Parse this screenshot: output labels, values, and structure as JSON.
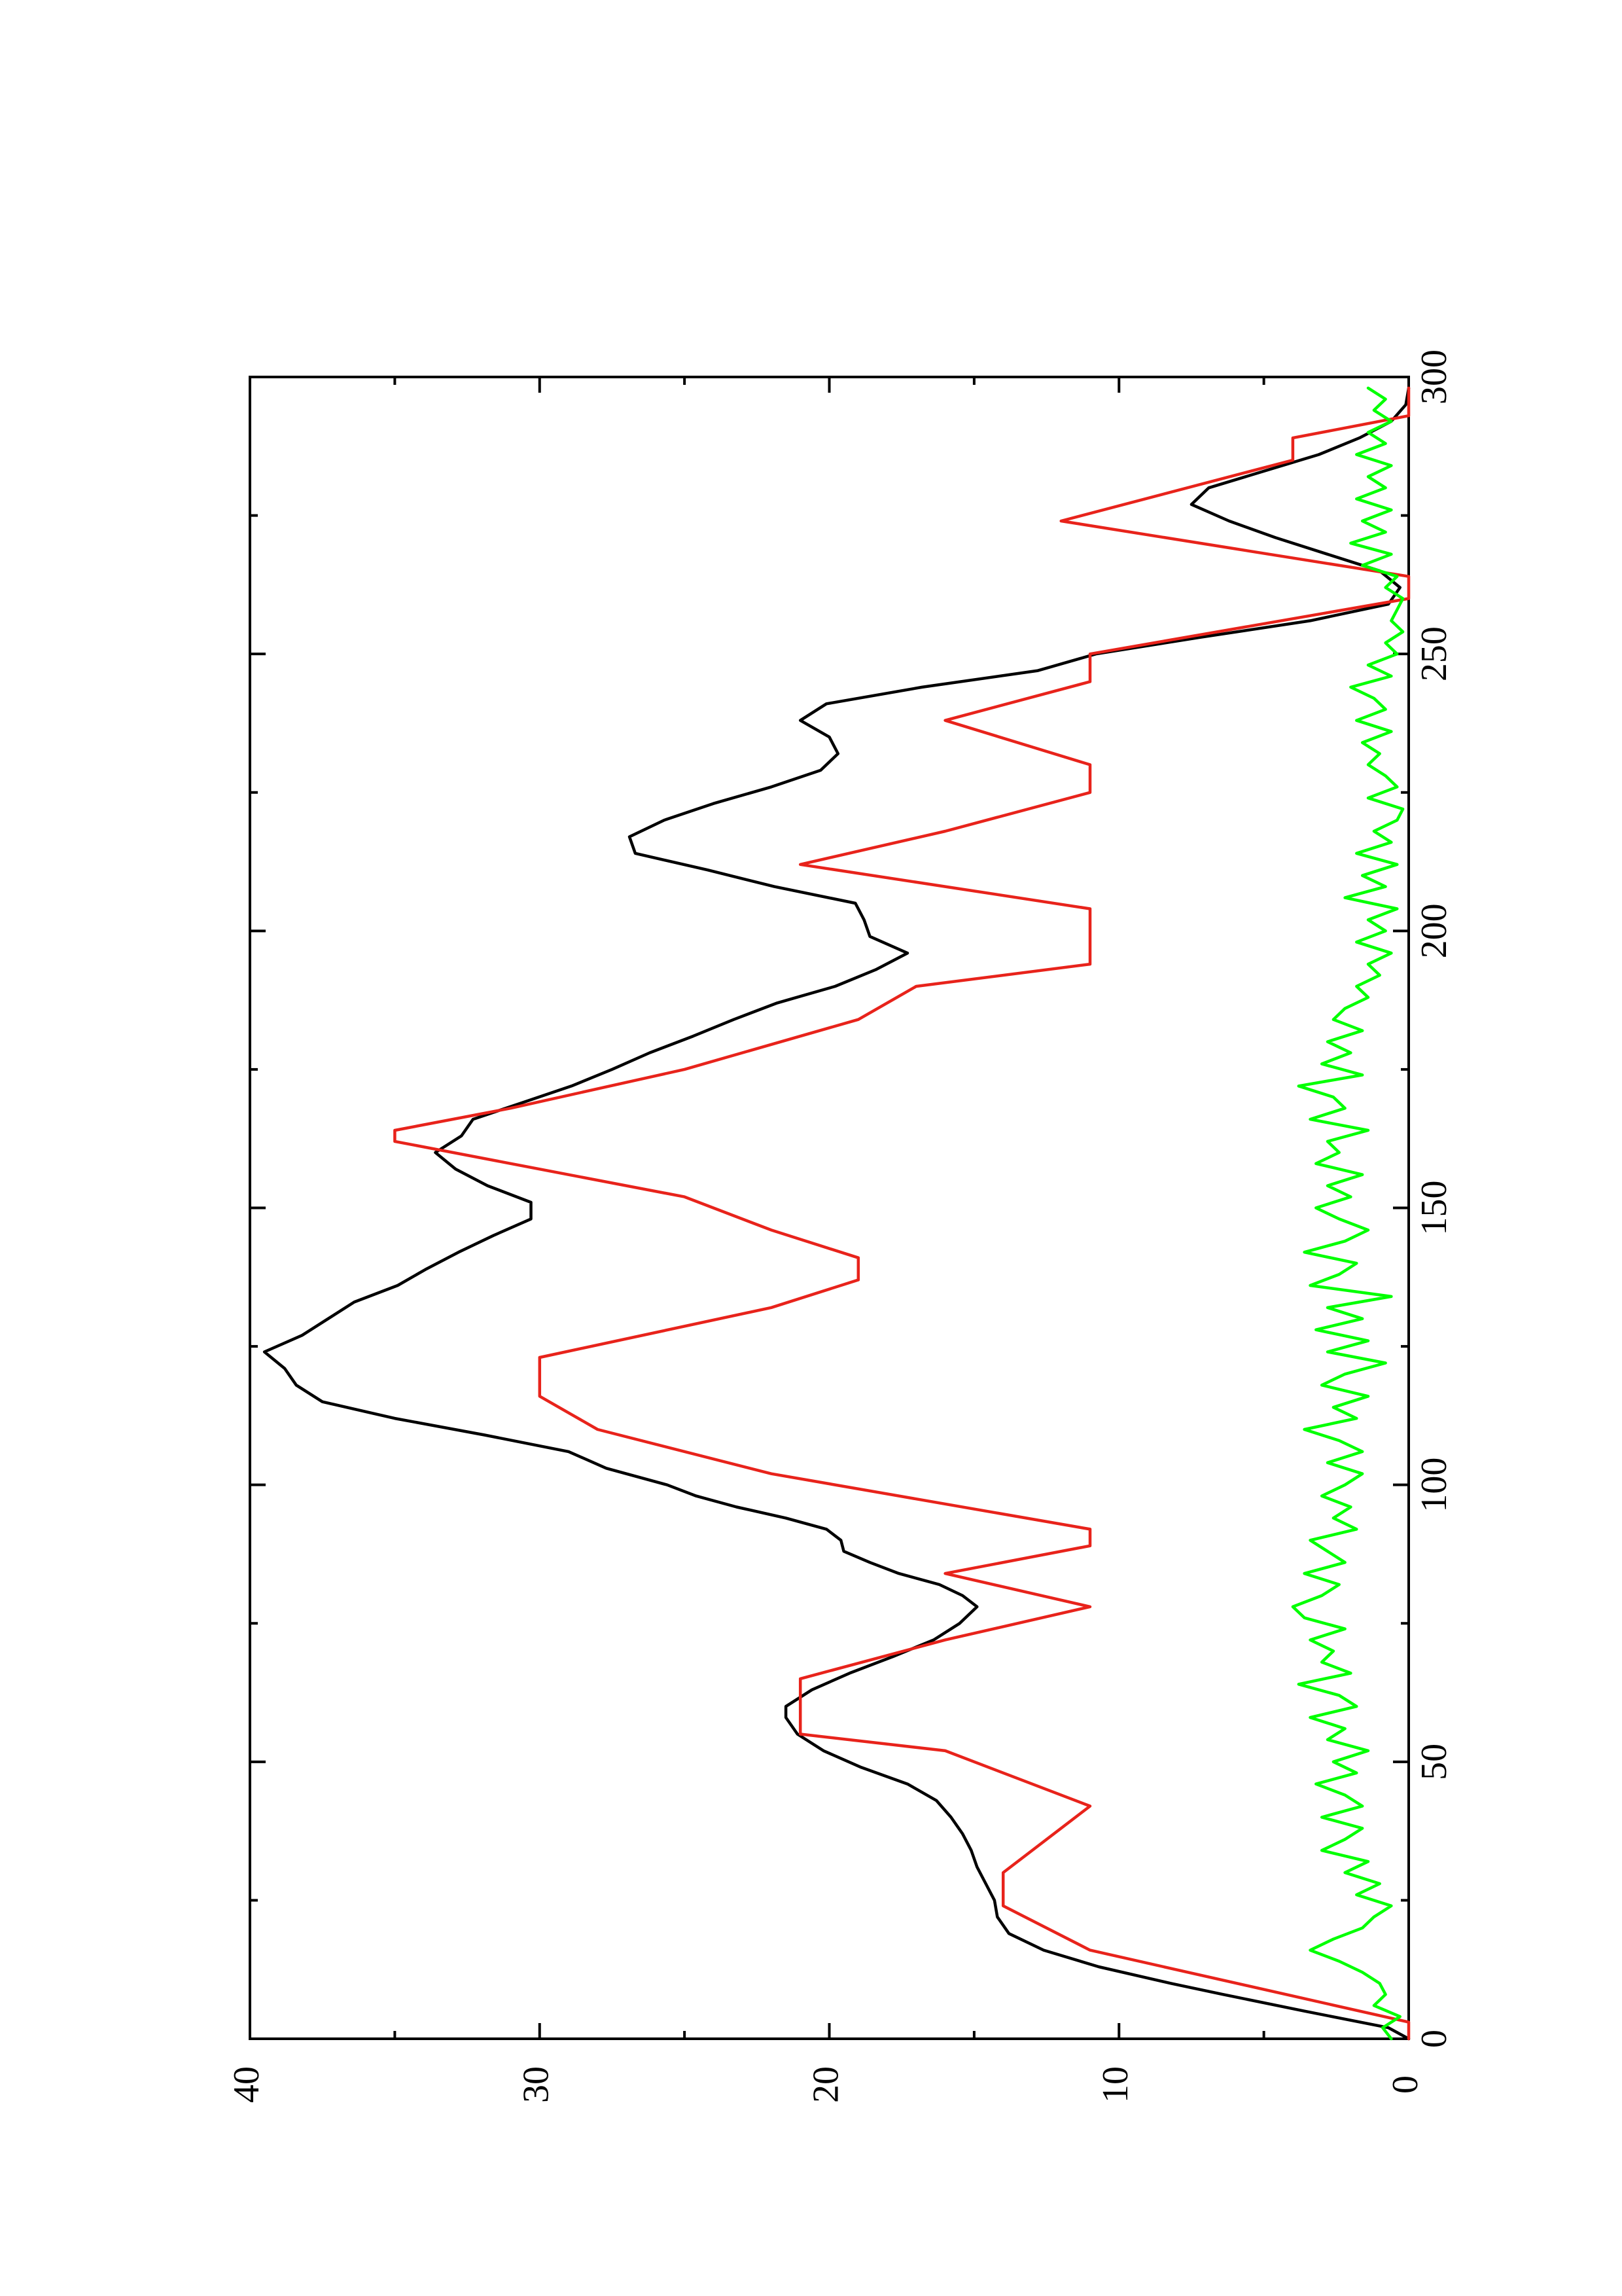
{
  "chart_data": {
    "type": "line",
    "title": "",
    "xlabel": "",
    "ylabel": "",
    "orientation": "rotated-90-ccw",
    "xlim": [
      0,
      300
    ],
    "ylim": [
      0,
      40
    ],
    "x_ticks": [
      "0",
      "50",
      "100",
      "150",
      "200",
      "250",
      "300"
    ],
    "y_ticks": [
      "0",
      "10",
      "20",
      "30",
      "40"
    ],
    "grid": false,
    "legend": "none",
    "series": [
      {
        "color": "#000000",
        "x": [
          0,
          2,
          5,
          8,
          10,
          13,
          16,
          19,
          22,
          25,
          28,
          31,
          34,
          37,
          40,
          43,
          46,
          49,
          52,
          55,
          58,
          60,
          63,
          66,
          69,
          72,
          75,
          78,
          80,
          82,
          84,
          86,
          88,
          90,
          92,
          94,
          96,
          98,
          100,
          103,
          106,
          109,
          112,
          115,
          118,
          121,
          124,
          127,
          130,
          133,
          136,
          139,
          142,
          145,
          148,
          151,
          154,
          157,
          160,
          163,
          166,
          169,
          172,
          175,
          178,
          181,
          184,
          187,
          190,
          193,
          196,
          199,
          202,
          205,
          208,
          211,
          214,
          217,
          220,
          223,
          226,
          229,
          232,
          235,
          238,
          241,
          244,
          247,
          250,
          253,
          256,
          259,
          262,
          265,
          268,
          271,
          274,
          277,
          280,
          283,
          286,
          289,
          292,
          295,
          298
        ],
        "y": [
          0,
          0.7,
          3.6,
          6.4,
          8.2,
          10.7,
          12.6,
          13.8,
          14.2,
          14.3,
          14.6,
          14.9,
          15.1,
          15.4,
          15.8,
          16.3,
          17.3,
          18.9,
          20.2,
          21.1,
          21.5,
          21.5,
          20.6,
          19.3,
          17.8,
          16.4,
          15.5,
          14.9,
          15.4,
          16.2,
          17.6,
          18.6,
          19.5,
          19.6,
          20.1,
          21.5,
          23.2,
          24.6,
          25.6,
          27.7,
          29.0,
          31.9,
          35.0,
          37.5,
          38.4,
          38.8,
          39.5,
          38.2,
          37.3,
          36.4,
          34.9,
          33.9,
          32.8,
          31.6,
          30.3,
          30.3,
          31.8,
          32.9,
          33.6,
          32.7,
          32.3,
          30.6,
          28.9,
          27.5,
          26.2,
          24.7,
          23.3,
          21.8,
          19.8,
          18.4,
          17.3,
          18.6,
          18.8,
          19.1,
          21.9,
          24.2,
          26.7,
          26.9,
          25.7,
          24.0,
          22.0,
          20.3,
          19.7,
          20.0,
          21.0,
          20.1,
          16.8,
          12.8,
          10.8,
          7.2,
          3.4,
          0.7,
          0.3,
          1.0,
          2.8,
          4.6,
          6.2,
          7.5,
          6.9,
          5.0,
          3.1,
          1.7,
          0.6,
          0.1,
          0.0
        ]
      },
      {
        "color": "#e8231b",
        "x": [
          0,
          3,
          16,
          16,
          24,
          24,
          29,
          29,
          30,
          30,
          42,
          42,
          52,
          52,
          55,
          55,
          65,
          65,
          72,
          72,
          78,
          78,
          84,
          84,
          89,
          89,
          92,
          92,
          102,
          102,
          110,
          110,
          116,
          116,
          123,
          123,
          132,
          132,
          137,
          137,
          141,
          141,
          146,
          146,
          152,
          152,
          158,
          158,
          162,
          162,
          164,
          164,
          168,
          168,
          175,
          175,
          184,
          184,
          190,
          190,
          194,
          194,
          204,
          204,
          208,
          208,
          212,
          212,
          218,
          218,
          225,
          225,
          230,
          230,
          238,
          238,
          245,
          245,
          250,
          250,
          260,
          260,
          264,
          264,
          269,
          269,
          274,
          274,
          285,
          285,
          289,
          289,
          293,
          293,
          298
        ],
        "y": [
          0,
          0,
          11,
          11,
          14,
          14,
          14,
          14,
          14,
          14,
          11,
          11,
          16,
          16,
          21,
          21,
          21,
          21,
          16,
          16,
          11,
          11,
          16,
          16,
          11,
          11,
          11,
          11,
          22,
          22,
          28,
          28,
          30,
          30,
          30,
          30,
          22,
          22,
          19,
          19,
          19,
          19,
          22,
          22,
          25,
          25,
          31,
          31,
          35,
          35,
          35,
          35,
          31,
          31,
          25,
          25,
          19,
          19,
          17,
          17,
          11,
          11,
          11,
          11,
          16,
          16,
          21,
          21,
          16,
          16,
          11,
          11,
          11,
          11,
          16,
          16,
          11,
          11,
          11,
          11,
          0,
          0,
          0,
          0,
          6,
          6,
          12,
          12,
          4,
          4,
          4,
          4,
          0,
          0,
          0
        ]
      },
      {
        "color": "#00ff00",
        "x": [
          0,
          2,
          4,
          6,
          8,
          10,
          12,
          14,
          16,
          18,
          20,
          22,
          24,
          26,
          28,
          30,
          32,
          34,
          36,
          38,
          40,
          42,
          44,
          46,
          48,
          50,
          52,
          54,
          56,
          58,
          60,
          62,
          64,
          66,
          68,
          70,
          72,
          74,
          76,
          78,
          80,
          82,
          84,
          86,
          88,
          90,
          92,
          94,
          96,
          98,
          100,
          102,
          104,
          106,
          108,
          110,
          112,
          114,
          116,
          118,
          120,
          122,
          124,
          126,
          128,
          130,
          132,
          134,
          136,
          138,
          140,
          142,
          144,
          146,
          148,
          150,
          152,
          154,
          156,
          158,
          160,
          162,
          164,
          166,
          168,
          170,
          172,
          174,
          176,
          178,
          180,
          182,
          184,
          186,
          188,
          190,
          192,
          194,
          196,
          198,
          200,
          202,
          204,
          206,
          208,
          210,
          212,
          214,
          216,
          218,
          220,
          222,
          224,
          226,
          228,
          230,
          232,
          234,
          236,
          238,
          240,
          242,
          244,
          246,
          248,
          250,
          252,
          254,
          256,
          258,
          260,
          262,
          264,
          266,
          268,
          270,
          272,
          274,
          276,
          278,
          280,
          282,
          284,
          286,
          288,
          290,
          292,
          294,
          296,
          298
        ],
        "y": [
          0.6,
          0.9,
          0.3,
          1.2,
          0.8,
          1.0,
          1.6,
          2.4,
          3.4,
          2.6,
          1.6,
          1.2,
          0.6,
          1.8,
          1.0,
          2.2,
          1.4,
          3.0,
          2.2,
          1.6,
          3.0,
          1.6,
          2.2,
          3.2,
          1.8,
          2.6,
          1.4,
          2.8,
          2.2,
          3.4,
          1.8,
          2.4,
          3.8,
          2.0,
          3.0,
          2.6,
          3.4,
          2.2,
          3.6,
          4.0,
          3.0,
          2.4,
          3.6,
          2.2,
          2.8,
          3.4,
          1.8,
          2.6,
          2.0,
          3.0,
          2.2,
          1.6,
          2.8,
          1.6,
          2.4,
          3.6,
          1.8,
          2.6,
          1.4,
          3.0,
          2.2,
          0.8,
          2.8,
          1.4,
          3.2,
          1.6,
          2.8,
          0.6,
          3.4,
          2.4,
          1.8,
          3.6,
          2.2,
          1.4,
          2.4,
          3.2,
          2.0,
          2.8,
          1.6,
          3.2,
          2.4,
          2.8,
          1.4,
          3.4,
          2.2,
          2.6,
          3.8,
          1.6,
          3.0,
          2.0,
          2.8,
          1.6,
          2.6,
          2.2,
          1.4,
          1.8,
          1.0,
          1.4,
          0.6,
          1.8,
          0.8,
          1.4,
          0.4,
          2.2,
          0.8,
          1.6,
          0.4,
          1.8,
          0.6,
          1.2,
          0.4,
          0.2,
          1.4,
          0.4,
          0.8,
          1.4,
          1.0,
          1.6,
          0.6,
          1.8,
          0.8,
          1.2,
          2.0,
          0.6,
          1.4,
          0.4,
          0.8,
          0.2,
          0.6,
          0.4,
          0.2,
          0.8,
          0.4,
          1.6,
          0.6,
          2.0,
          0.8,
          1.6,
          0.6,
          1.8,
          0.8,
          1.4,
          0.6,
          1.8,
          0.8,
          1.4,
          0.6,
          1.2,
          0.8,
          1.4
        ]
      }
    ]
  }
}
